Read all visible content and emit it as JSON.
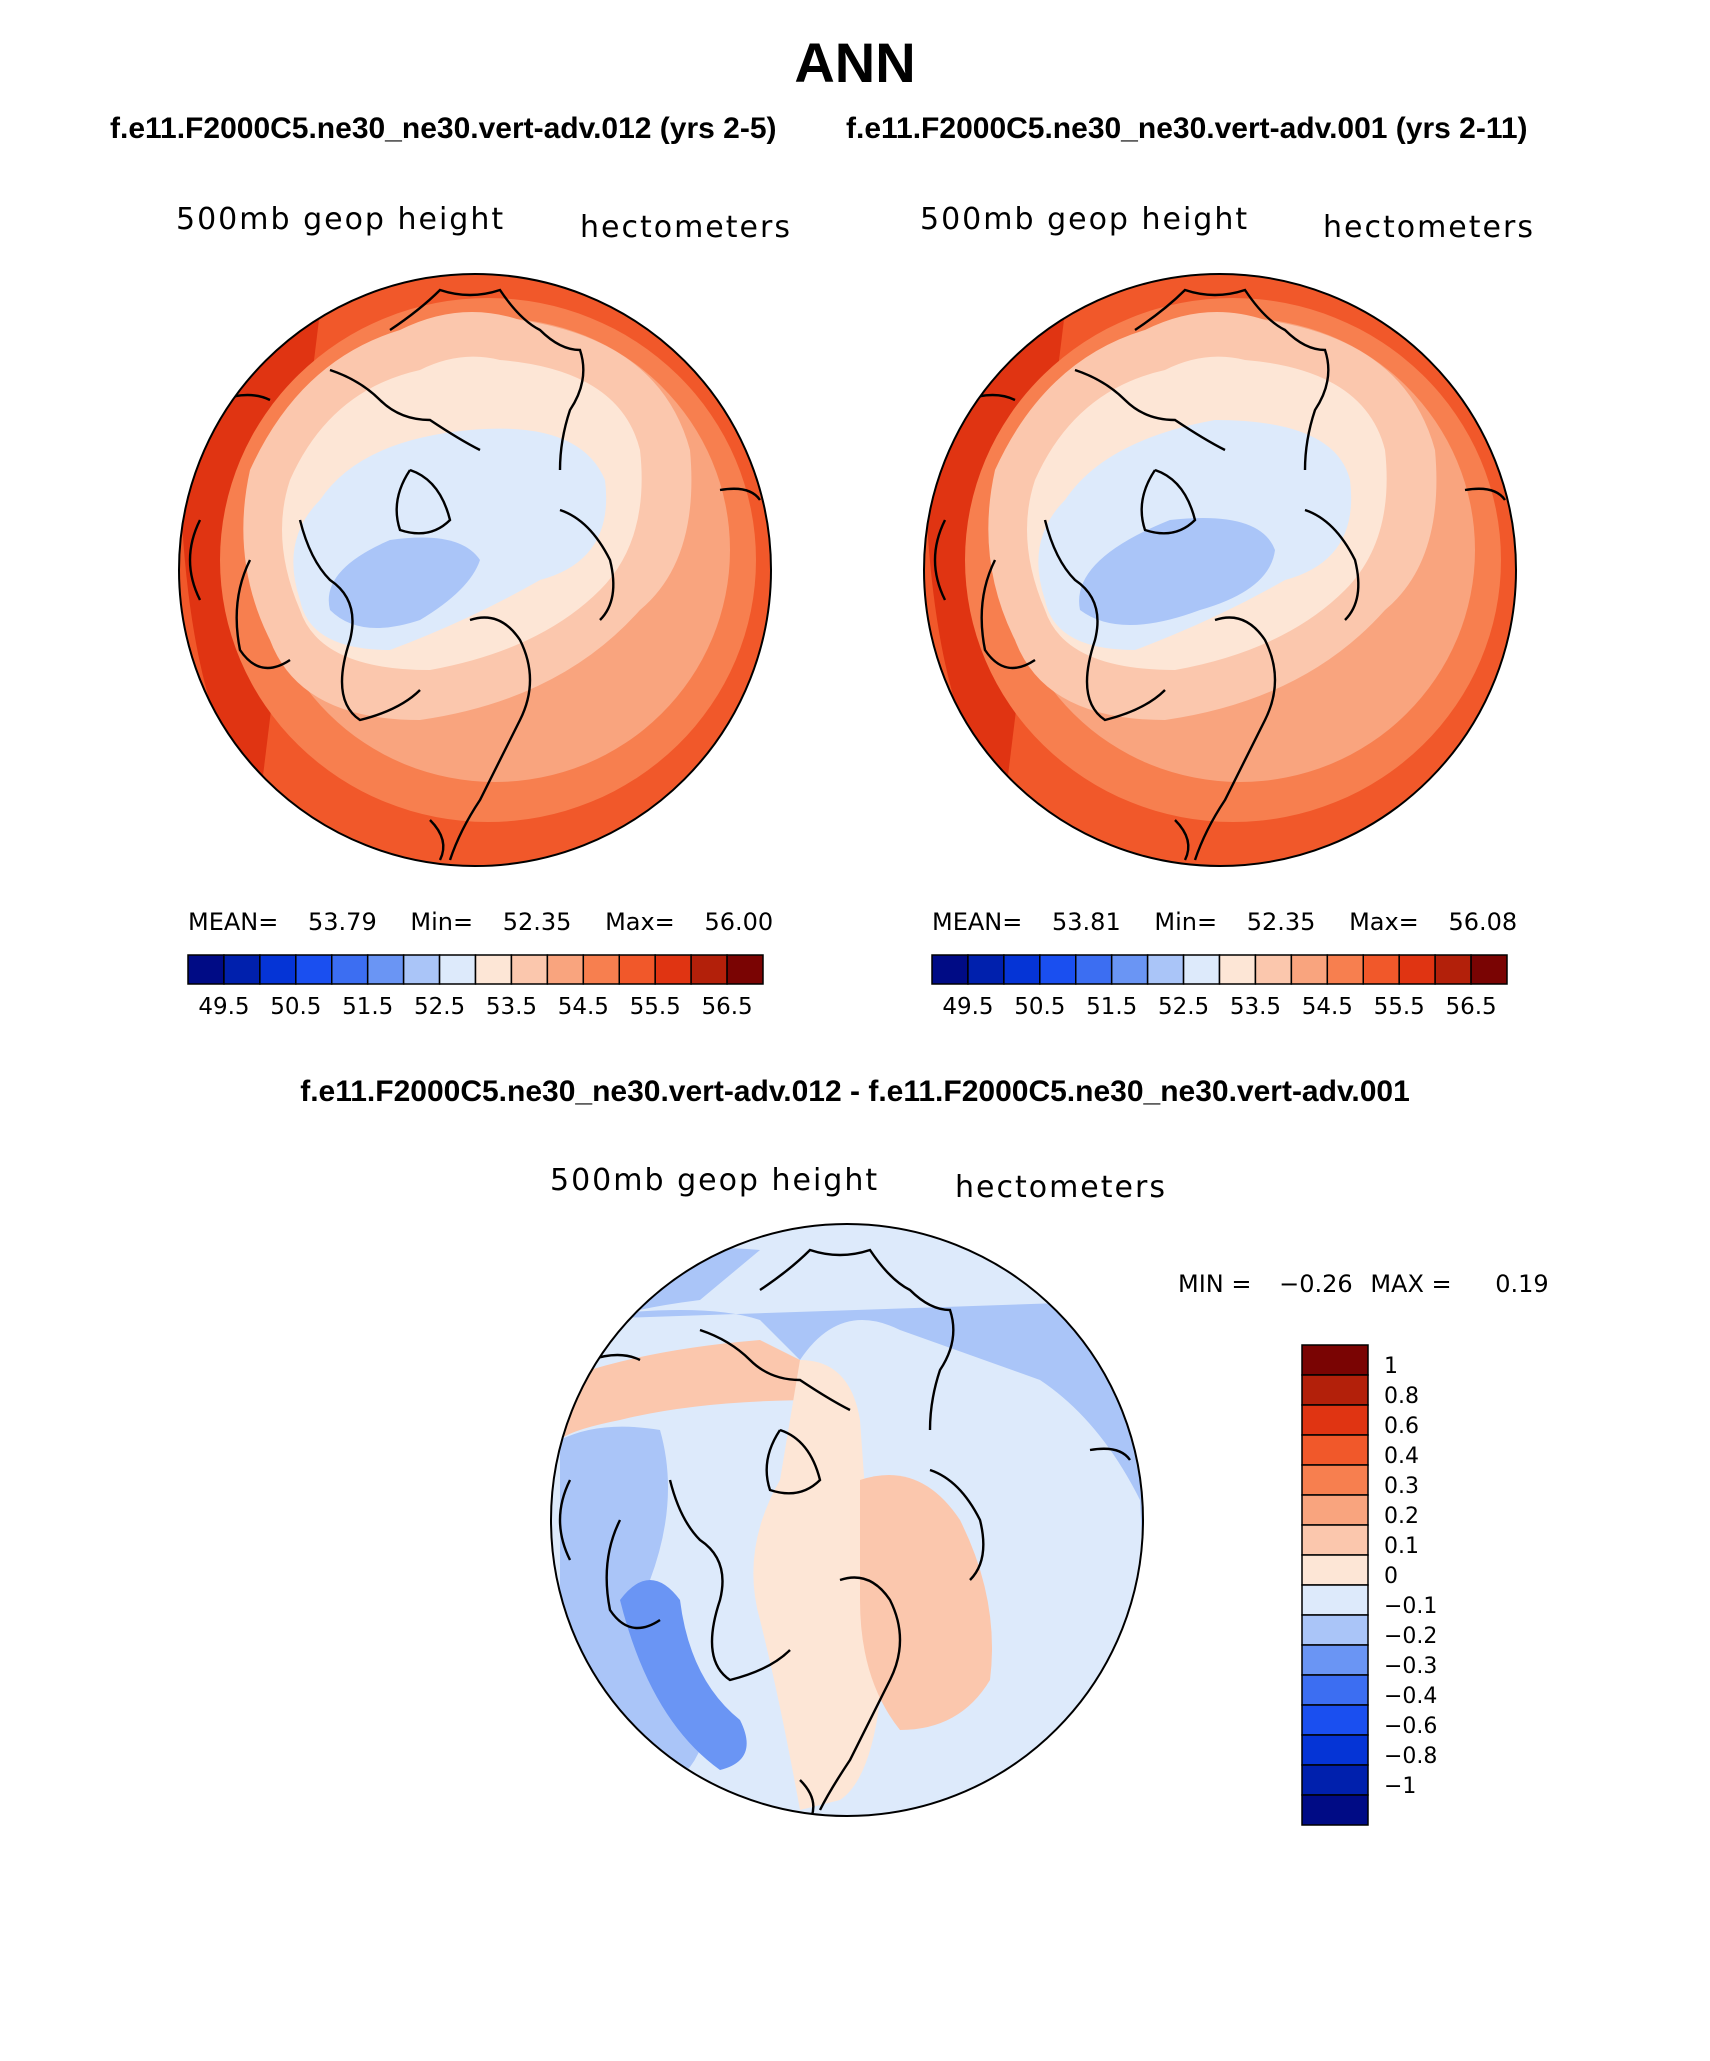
{
  "title": "ANN",
  "subtitle_left": "f.e11.F2000C5.ne30_ne30.vert-adv.012 (yrs 2-5)",
  "subtitle_right": "f.e11.F2000C5.ne30_ne30.vert-adv.001 (yrs 2-11)",
  "diff_title": "f.e11.F2000C5.ne30_ne30.vert-adv.012 - f.e11.F2000C5.ne30_ne30.vert-adv.001",
  "panels": [
    {
      "variable": "500mb geop height",
      "units": "hectometers",
      "stats": {
        "mean_label": "MEAN=",
        "mean": "53.79",
        "min_label": "Min=",
        "min": "52.35",
        "max_label": "Max=",
        "max": "56.00"
      }
    },
    {
      "variable": "500mb geop height",
      "units": "hectometers",
      "stats": {
        "mean_label": "MEAN=",
        "mean": "53.81",
        "min_label": "Min=",
        "min": "52.35",
        "max_label": "Max=",
        "max": "56.08"
      }
    }
  ],
  "diff_panel": {
    "variable": "500mb geop height",
    "units": "hectometers",
    "min_label": "MIN =",
    "min": "−0.26",
    "max_label": "MAX =",
    "max": "0.19"
  },
  "colorbar_top": {
    "colors": [
      "#000b85",
      "#0020ad",
      "#0534d6",
      "#1a4ff0",
      "#3c6ef2",
      "#6a95f4",
      "#aac5f8",
      "#ddeafb",
      "#fde6d6",
      "#fbc7ad",
      "#f9a47e",
      "#f77f4f",
      "#f1582a",
      "#e03412",
      "#b3200a",
      "#7a0403"
    ],
    "labels": [
      "49.5",
      "50.5",
      "51.5",
      "52.5",
      "53.5",
      "54.5",
      "55.5",
      "56.5"
    ]
  },
  "colorbar_diff": {
    "colors": [
      "#000b85",
      "#0020ad",
      "#0534d6",
      "#1a4ff0",
      "#3c6ef2",
      "#6a95f4",
      "#aac5f8",
      "#ddeafb",
      "#fde6d6",
      "#fbc7ad",
      "#f9a47e",
      "#f77f4f",
      "#f1582a",
      "#e03412",
      "#b3200a",
      "#7a0403"
    ],
    "labels": [
      "1",
      "0.8",
      "0.6",
      "0.4",
      "0.3",
      "0.2",
      "0.1",
      "0",
      "−0.1",
      "−0.2",
      "−0.3",
      "−0.4",
      "−0.6",
      "−0.8",
      "−1"
    ]
  }
}
